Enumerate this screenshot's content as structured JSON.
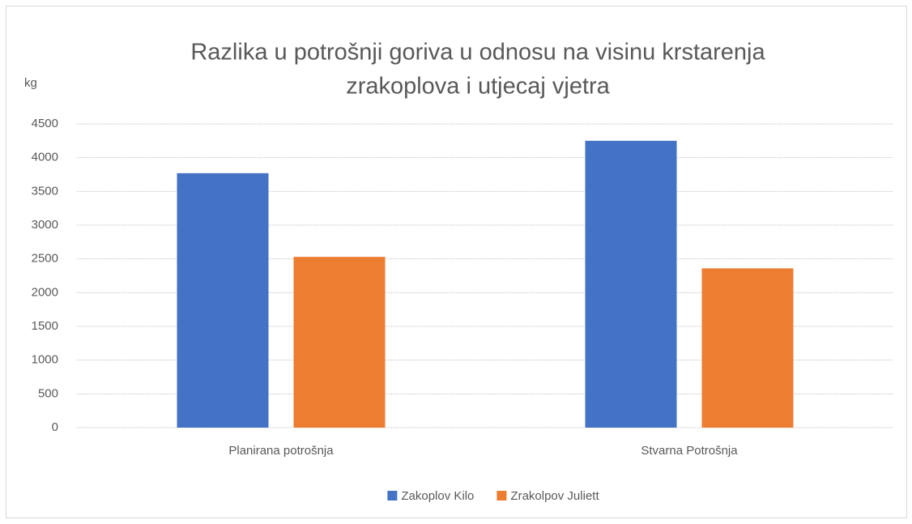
{
  "chart_data": {
    "type": "bar",
    "title": [
      "Razlika u potrošnji goriva u odnosu na visinu krstarenja",
      "zrakoplova i utjecaj vjetra"
    ],
    "y_label": "kg",
    "categories": [
      "Planirana potrošnja",
      "Stvarna Potrošnja"
    ],
    "series": [
      {
        "name": "Zakoplov Kilo",
        "color": "#4472c4",
        "values": [
          3770,
          4250
        ]
      },
      {
        "name": "Zrakolpov Juliett",
        "color": "#ed7d31",
        "values": [
          2530,
          2360
        ]
      }
    ],
    "ylim": [
      0,
      4500
    ],
    "yticks": [
      0,
      500,
      1000,
      1500,
      2000,
      2500,
      3000,
      3500,
      4000,
      4500
    ],
    "grid": true,
    "legend": "bottom"
  }
}
